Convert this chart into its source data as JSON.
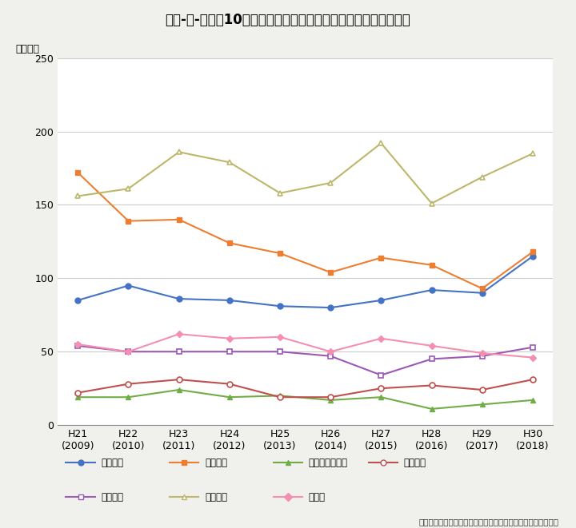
{
  "title": "第２-３-５図　10歳代の自殺者における原因・動機別件数の推移",
  "ylabel": "（件数）",
  "source": "資料：警察庁「自殺統計」より厚生労働省自殺対策推進室作成",
  "x_labels": [
    "H21\n(2009)",
    "H22\n(2010)",
    "H23\n(2011)",
    "H24\n(2012)",
    "H25\n(2013)",
    "H26\n(2014)",
    "H27\n(2015)",
    "H28\n(2016)",
    "H29\n(2017)",
    "H30\n(2018)"
  ],
  "ylim": [
    0,
    250
  ],
  "yticks": [
    0,
    50,
    100,
    150,
    200,
    250
  ],
  "series": [
    {
      "label": "家庭問題",
      "color": "#4472C4",
      "marker": "o",
      "markersize": 5,
      "linestyle": "-",
      "values": [
        85,
        95,
        86,
        85,
        81,
        80,
        85,
        92,
        90,
        115
      ]
    },
    {
      "label": "健康問題",
      "color": "#ED7D31",
      "marker": "s",
      "markersize": 5,
      "linestyle": "-",
      "values": [
        172,
        139,
        140,
        124,
        117,
        104,
        114,
        109,
        93,
        118
      ]
    },
    {
      "label": "経済・生活問題",
      "color": "#70AD47",
      "marker": "^",
      "markersize": 5,
      "linestyle": "-",
      "values": [
        19,
        19,
        24,
        19,
        20,
        17,
        19,
        11,
        14,
        17
      ]
    },
    {
      "label": "勤務問題",
      "color": "#C0504D",
      "marker": "o",
      "markersize": 5,
      "linestyle": "-",
      "markerfacecolor": "white",
      "values": [
        22,
        28,
        31,
        28,
        19,
        19,
        25,
        27,
        24,
        31
      ]
    },
    {
      "label": "男女問題",
      "color": "#9B59B6",
      "marker": "s",
      "markersize": 5,
      "linestyle": "-",
      "markerfacecolor": "white",
      "values": [
        54,
        50,
        50,
        50,
        50,
        47,
        34,
        45,
        47,
        53
      ]
    },
    {
      "label": "学校問題",
      "color": "#BDB76B",
      "marker": "^",
      "markersize": 5,
      "linestyle": "-",
      "markerfacecolor": "white",
      "values": [
        156,
        161,
        186,
        179,
        158,
        165,
        192,
        151,
        169,
        185
      ]
    },
    {
      "label": "その他",
      "color": "#F48FB1",
      "marker": "D",
      "markersize": 4,
      "linestyle": "-",
      "values": [
        55,
        50,
        62,
        59,
        60,
        50,
        59,
        54,
        49,
        46
      ]
    }
  ],
  "background_color": "#FFFFFF",
  "title_bg_color": "#C8E0D2",
  "fig_bg_color": "#F0F0EC",
  "grid_color": "#CCCCCC",
  "title_fontsize": 12,
  "axis_fontsize": 9,
  "legend_fontsize": 8.5
}
